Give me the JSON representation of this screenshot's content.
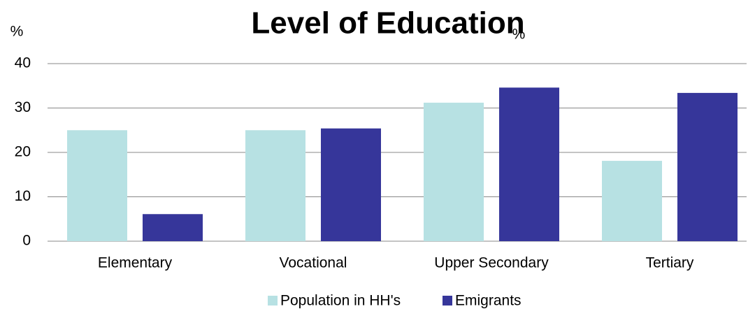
{
  "chart_data": {
    "type": "bar",
    "title": "Level of Education",
    "ylabel": "%",
    "annotation": "%",
    "categories": [
      "Elementary",
      "Vocational",
      "Upper Secondary",
      "Tertiary"
    ],
    "series": [
      {
        "name": "Population in HH's",
        "color": "#b7e1e3",
        "values": [
          25.0,
          25.0,
          31.2,
          18.1
        ]
      },
      {
        "name": "Emigrants",
        "color": "#36369a",
        "values": [
          6.1,
          25.4,
          34.6,
          33.4
        ]
      }
    ],
    "ylim": [
      0,
      40
    ],
    "yticks": [
      0,
      10,
      20,
      30,
      40
    ],
    "grid": true,
    "legend": "bottom"
  }
}
